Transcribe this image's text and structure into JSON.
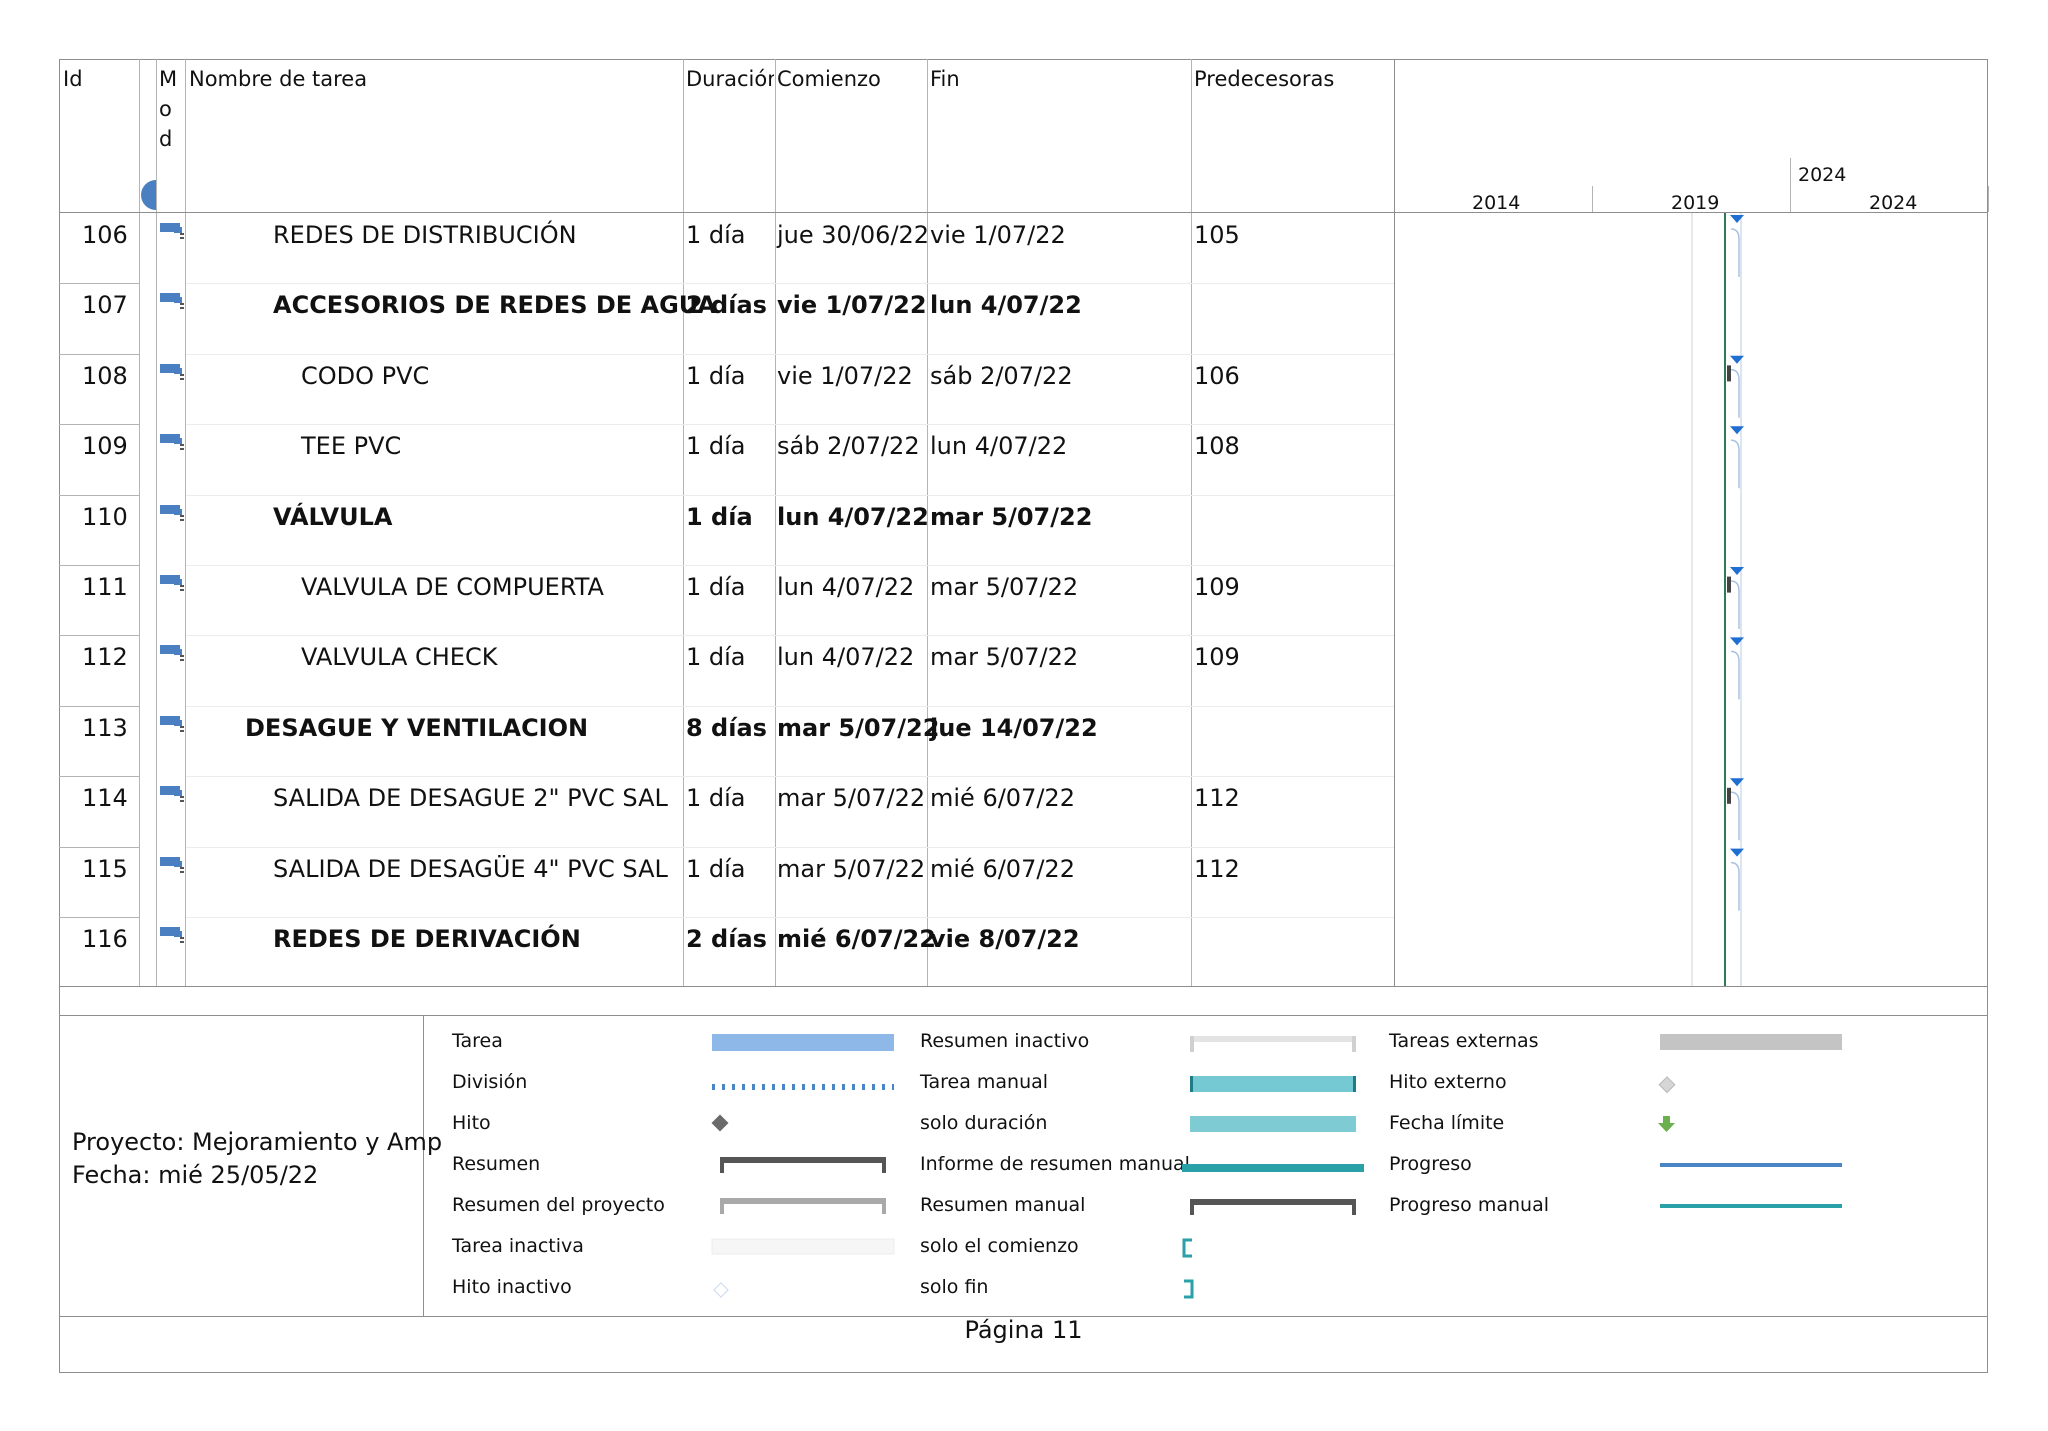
{
  "columns": {
    "id": "Id",
    "mode": "Modo de tarea",
    "name": "Nombre de tarea",
    "duration": "Duración",
    "start": "Comienzo",
    "finish": "Fin",
    "predecessors": "Predecesoras"
  },
  "timeline": {
    "top_year": "2024",
    "years": [
      "2014",
      "2019",
      "2024"
    ]
  },
  "tasks": [
    {
      "id": "106",
      "name": "REDES DE DISTRIBUCIÓN",
      "duration": "1 día",
      "start": "jue 30/06/22",
      "finish": "vie 1/07/22",
      "pred": "105",
      "summary": false,
      "level": 2
    },
    {
      "id": "107",
      "name": "ACCESORIOS DE REDES DE AGUA",
      "duration": "2 días",
      "start": "vie 1/07/22",
      "finish": "lun 4/07/22",
      "pred": "",
      "summary": true,
      "level": 2
    },
    {
      "id": "108",
      "name": "CODO PVC",
      "duration": "1 día",
      "start": "vie 1/07/22",
      "finish": "sáb 2/07/22",
      "pred": "106",
      "summary": false,
      "level": 3
    },
    {
      "id": "109",
      "name": "TEE PVC",
      "duration": "1 día",
      "start": "sáb 2/07/22",
      "finish": "lun 4/07/22",
      "pred": "108",
      "summary": false,
      "level": 3
    },
    {
      "id": "110",
      "name": "VÁLVULA",
      "duration": "1 día",
      "start": "lun 4/07/22",
      "finish": "mar 5/07/22",
      "pred": "",
      "summary": true,
      "level": 2
    },
    {
      "id": "111",
      "name": "VALVULA DE COMPUERTA",
      "duration": "1 día",
      "start": "lun 4/07/22",
      "finish": "mar 5/07/22",
      "pred": "109",
      "summary": false,
      "level": 3
    },
    {
      "id": "112",
      "name": "VALVULA CHECK",
      "duration": "1 día",
      "start": "lun 4/07/22",
      "finish": "mar 5/07/22",
      "pred": "109",
      "summary": false,
      "level": 3
    },
    {
      "id": "113",
      "name": "DESAGUE Y VENTILACION",
      "duration": "8 días",
      "start": "mar 5/07/22",
      "finish": "jue 14/07/22",
      "pred": "",
      "summary": true,
      "level": 1
    },
    {
      "id": "114",
      "name": "SALIDA DE DESAGUE 2\" PVC SAL",
      "duration": "1 día",
      "start": "mar 5/07/22",
      "finish": "mié 6/07/22",
      "pred": "112",
      "summary": false,
      "level": 2
    },
    {
      "id": "115",
      "name": "SALIDA DE DESAGÜE 4\" PVC SAL",
      "duration": "1 día",
      "start": "mar 5/07/22",
      "finish": "mié 6/07/22",
      "pred": "112",
      "summary": false,
      "level": 2
    },
    {
      "id": "116",
      "name": "REDES DE DERIVACIÓN",
      "duration": "2 días",
      "start": "mié 6/07/22",
      "finish": "vie 8/07/22",
      "pred": "",
      "summary": true,
      "level": 2
    }
  ],
  "project": {
    "project_line": "Proyecto:  Mejoramiento y Amp",
    "date_line": "Fecha: mié 25/05/22"
  },
  "legend": {
    "col1": [
      "Tarea",
      "División",
      "Hito",
      "Resumen",
      "Resumen del proyecto",
      "Tarea inactiva",
      "Hito inactivo"
    ],
    "col2": [
      "Resumen inactivo",
      "Tarea manual",
      "solo duración",
      "Informe de resumen manual",
      "Resumen manual",
      "solo el comienzo",
      "solo fin"
    ],
    "col3": [
      "Tareas externas",
      "Hito externo",
      "Fecha límite",
      "Progreso",
      "Progreso manual"
    ]
  },
  "colors": {
    "task_bar": "#8db8e8",
    "manual_task": "#74c9d3",
    "summary": "#555555",
    "progress": "#4a86c5",
    "manual_progress": "#2aa0a8",
    "external": "#c4c4c4",
    "deadline": "#6ab04c",
    "milestone": "#1f6fd1"
  },
  "footer": {
    "page": "Página 11"
  }
}
